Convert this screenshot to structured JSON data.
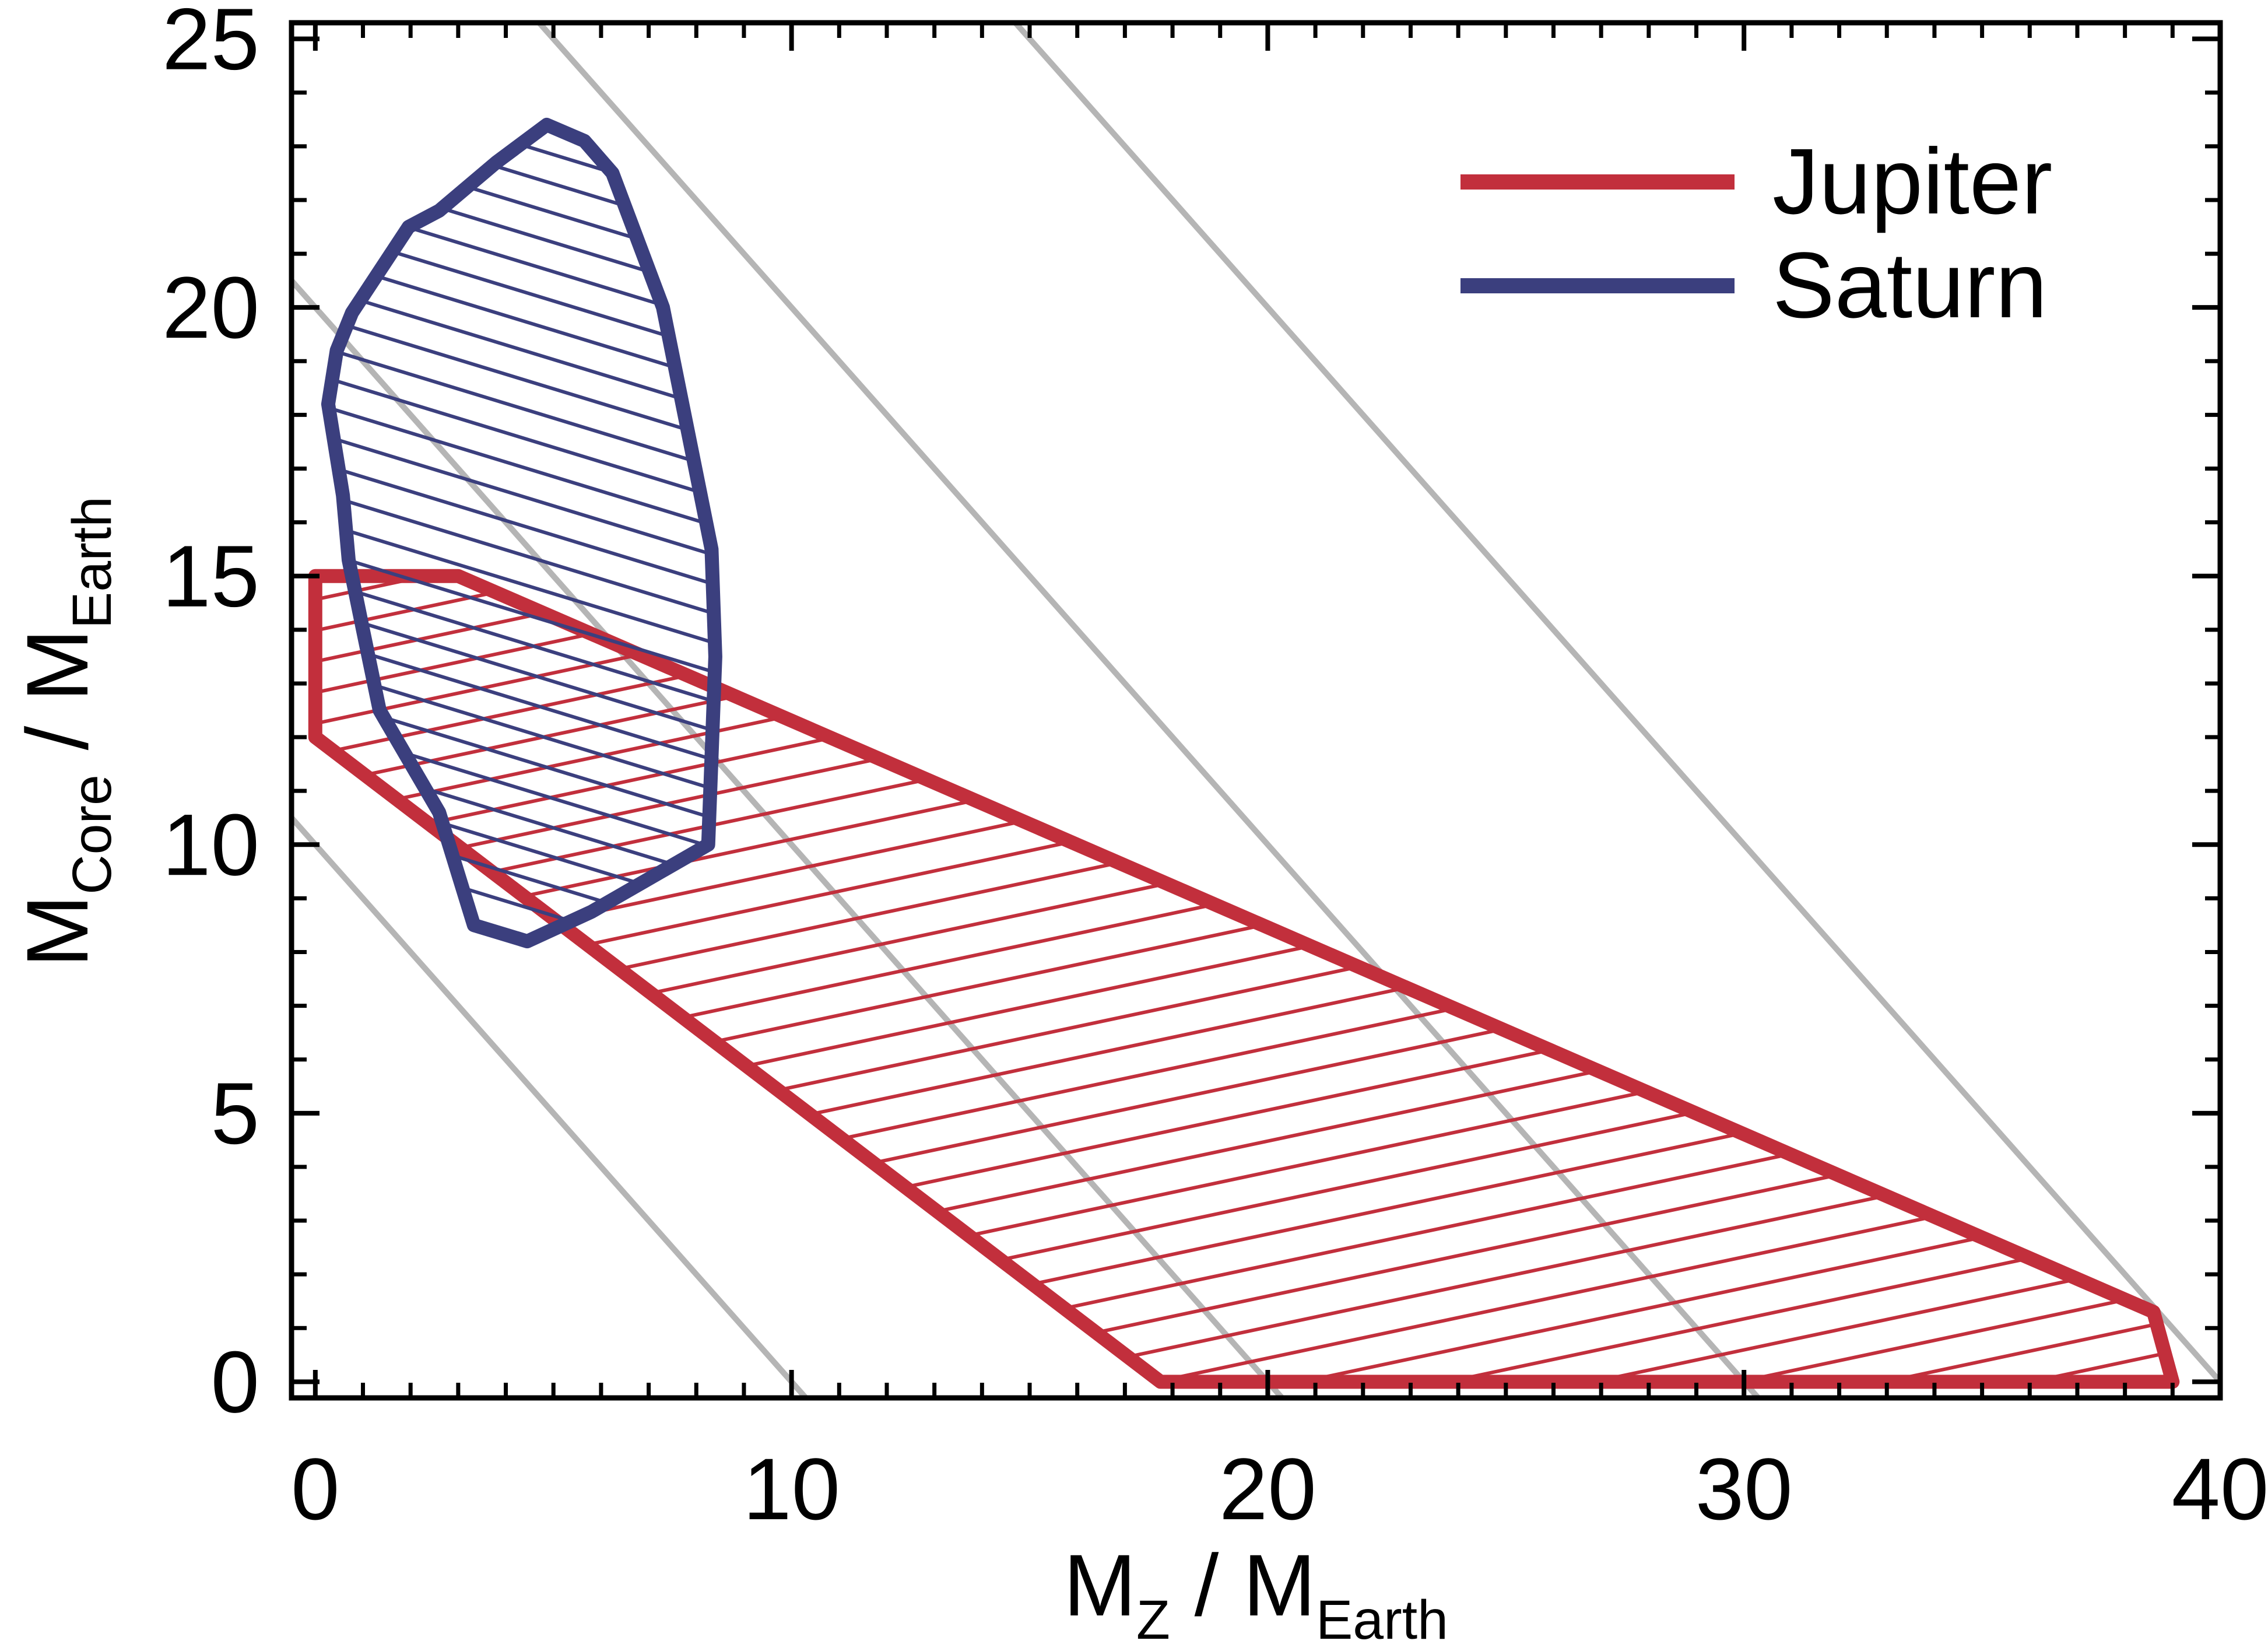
{
  "chart_data": {
    "type": "area",
    "title": "",
    "x_title_parts": [
      {
        "t": "M"
      },
      {
        "t": "Z",
        "sub": true
      },
      {
        "t": "  /  "
      },
      {
        "t": "M"
      },
      {
        "t": "Earth",
        "sub": true
      }
    ],
    "y_title_parts": [
      {
        "t": "M"
      },
      {
        "t": "Core",
        "sub": true
      },
      {
        "t": "  /  "
      },
      {
        "t": "M"
      },
      {
        "t": "Earth",
        "sub": true
      }
    ],
    "x_axis": {
      "min": -0.5,
      "max": 40,
      "major_ticks": [
        0,
        10,
        20,
        30,
        40
      ],
      "tick_labels": [
        "0",
        "10",
        "20",
        "30",
        "40"
      ],
      "minor_step": 1
    },
    "y_axis": {
      "min": -0.3,
      "max": 25.3,
      "major_ticks": [
        0,
        5,
        10,
        15,
        20,
        25
      ],
      "tick_labels": [
        "0",
        "5",
        "10",
        "15",
        "20",
        "25"
      ],
      "minor_step": 1
    },
    "grid": "off",
    "guide_lines": {
      "comment_visible_in_pixels_only": "four diagonal gray lines of slope -1, x+y = const",
      "sums": [
        10,
        20,
        30,
        40
      ],
      "color": "#b5b5b5",
      "width": 10
    },
    "series": [
      {
        "name": "Jupiter",
        "color": "#c22f3c",
        "hatch_angle_deg": -12,
        "hatch_spacing": 52,
        "hatch_width": 6,
        "outline_width": 24,
        "vertices": [
          [
            0,
            15
          ],
          [
            3,
            15
          ],
          [
            38.6,
            1.3
          ],
          [
            39.0,
            0
          ],
          [
            17.75,
            0
          ],
          [
            0,
            12
          ]
        ]
      },
      {
        "name": "Saturn",
        "color": "#3b3f7e",
        "hatch_angle_deg": 17,
        "hatch_spacing": 48,
        "hatch_width": 6,
        "outline_width": 24,
        "vertices": [
          [
            4.86,
            23.4
          ],
          [
            5.65,
            23.1
          ],
          [
            6.24,
            22.5
          ],
          [
            7.3,
            20.0
          ],
          [
            8.32,
            15.5
          ],
          [
            8.4,
            13.5
          ],
          [
            8.25,
            10.0
          ],
          [
            5.8,
            8.75
          ],
          [
            4.45,
            8.2
          ],
          [
            3.33,
            8.5
          ],
          [
            2.6,
            10.6
          ],
          [
            1.35,
            12.5
          ],
          [
            1.0,
            14.0
          ],
          [
            0.7,
            15.3
          ],
          [
            0.58,
            16.5
          ],
          [
            0.27,
            18.2
          ],
          [
            0.45,
            19.2
          ],
          [
            0.77,
            19.9
          ],
          [
            1.96,
            21.5
          ],
          [
            2.6,
            21.8
          ],
          [
            3.8,
            22.7
          ]
        ]
      }
    ],
    "legend": {
      "position": "upper-right-inside",
      "entries": [
        {
          "label": "Jupiter",
          "series": 0
        },
        {
          "label": "Saturn",
          "series": 1
        }
      ]
    },
    "ylim": [
      -0.3,
      25.3
    ],
    "xlim": [
      -0.5,
      40
    ]
  },
  "layout_text": {
    "legend_jupiter": "Jupiter",
    "legend_saturn": "Saturn"
  }
}
